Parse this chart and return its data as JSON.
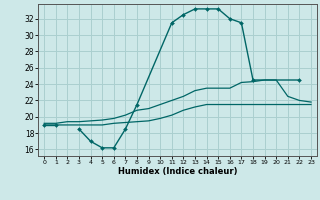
{
  "xlabel": "Humidex (Indice chaleur)",
  "background_color": "#cde8e8",
  "grid_color": "#aacfcf",
  "line_color": "#006666",
  "x_ticks": [
    0,
    1,
    2,
    3,
    4,
    5,
    6,
    7,
    8,
    9,
    10,
    11,
    12,
    13,
    14,
    15,
    16,
    17,
    18,
    19,
    20,
    21,
    22,
    23
  ],
  "y_ticks": [
    16,
    18,
    20,
    22,
    24,
    26,
    28,
    30,
    32
  ],
  "ylim": [
    15.2,
    33.8
  ],
  "xlim": [
    -0.5,
    23.5
  ],
  "series": [
    {
      "x": [
        0,
        1,
        2,
        3,
        4,
        5,
        6,
        7,
        8,
        11,
        12,
        13,
        14,
        15,
        16,
        17,
        18,
        22
      ],
      "y": [
        19,
        19,
        null,
        18.5,
        17,
        16.2,
        16.2,
        18.5,
        21.5,
        31.5,
        32.5,
        33.2,
        33.2,
        33.2,
        32,
        31.5,
        24.5,
        24.5
      ],
      "has_markers": true
    },
    {
      "x": [
        0,
        1,
        2,
        3,
        4,
        5,
        6,
        7,
        8,
        9,
        10,
        11,
        12,
        13,
        14,
        15,
        16,
        17,
        18,
        19,
        20,
        21,
        22,
        23
      ],
      "y": [
        19.2,
        19.2,
        19.4,
        19.4,
        19.5,
        19.6,
        19.8,
        20.2,
        20.8,
        21.0,
        21.5,
        22.0,
        22.5,
        23.2,
        23.5,
        23.5,
        23.5,
        24.2,
        24.3,
        24.5,
        24.5,
        22.5,
        22.0,
        21.8
      ],
      "has_markers": false
    },
    {
      "x": [
        0,
        1,
        2,
        3,
        4,
        5,
        6,
        7,
        8,
        9,
        10,
        11,
        12,
        13,
        14,
        15,
        16,
        17,
        18,
        19,
        20,
        21,
        22,
        23
      ],
      "y": [
        19.0,
        19.0,
        19.0,
        19.0,
        19.0,
        19.0,
        19.2,
        19.3,
        19.4,
        19.5,
        19.8,
        20.2,
        20.8,
        21.2,
        21.5,
        21.5,
        21.5,
        21.5,
        21.5,
        21.5,
        21.5,
        21.5,
        21.5,
        21.5
      ],
      "has_markers": false
    }
  ]
}
